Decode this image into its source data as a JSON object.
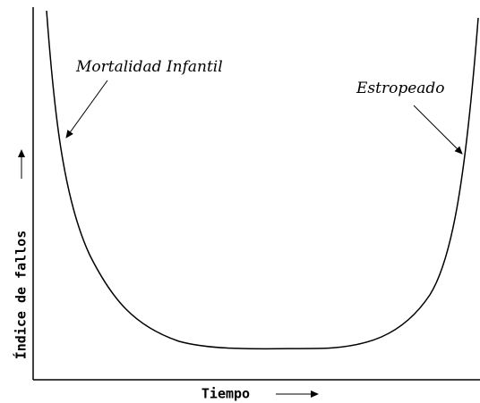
{
  "diagram": {
    "y_axis_label": "Índice de fallos",
    "x_axis_label": "Tiempo",
    "annotations": [
      "Mortalidad Infantil",
      "Estropeado"
    ]
  }
}
